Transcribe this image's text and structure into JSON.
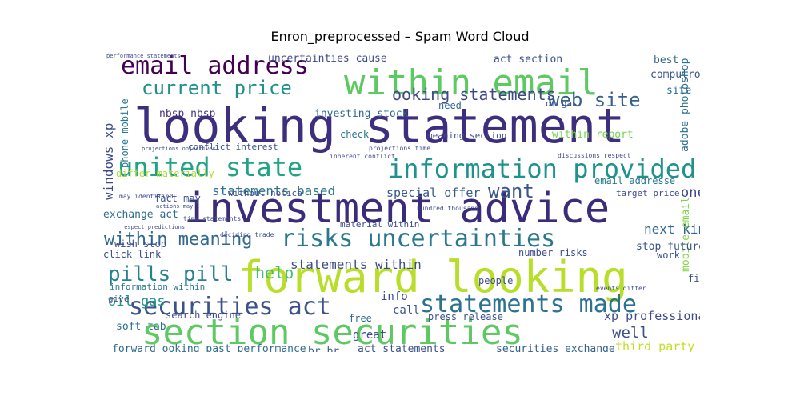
{
  "title": "Enron_preprocessed – Spam Word Cloud",
  "words": [
    {
      "text": "looking statement",
      "color": "#3e2f7e"
    },
    {
      "text": "investment advice",
      "color": "#3a2c78"
    },
    {
      "text": "forward looking",
      "color": "#b8de29"
    },
    {
      "text": "section securities",
      "color": "#5ec962"
    },
    {
      "text": "within email",
      "color": "#5ec962"
    },
    {
      "text": "email address",
      "color": "#440154"
    },
    {
      "text": "information provided",
      "color": "#20928c"
    },
    {
      "text": "united state",
      "color": "#20a386"
    },
    {
      "text": "risks uncertainties",
      "color": "#2a788e"
    },
    {
      "text": "securities act",
      "color": "#3b528b"
    },
    {
      "text": "statements made",
      "color": "#2c728e"
    },
    {
      "text": "current price",
      "color": "#21918c"
    },
    {
      "text": "ooking statements",
      "color": "#3f4788"
    },
    {
      "text": "web site",
      "color": "#35608d"
    },
    {
      "text": "pills pill",
      "color": "#26828e"
    },
    {
      "text": "within meaning",
      "color": "#31688e"
    },
    {
      "text": "want",
      "color": "#39568c"
    },
    {
      "text": "help",
      "color": "#43bf71"
    },
    {
      "text": "statements based",
      "color": "#2a768e"
    },
    {
      "text": "statements within",
      "color": "#3e4c8a"
    },
    {
      "text": "uncertainties cause",
      "color": "#3e4989"
    },
    {
      "text": "act section",
      "color": "#3c508b"
    },
    {
      "text": "best",
      "color": "#31688e"
    },
    {
      "text": "site",
      "color": "#2e6e8e"
    },
    {
      "text": "computron",
      "color": "#3b528b"
    },
    {
      "text": "investing stock",
      "color": "#31688e"
    },
    {
      "text": "nbsp nbsp",
      "color": "#46327e"
    },
    {
      "text": "within report",
      "color": "#7ad151"
    },
    {
      "text": "windows xp",
      "color": "#3e4c8a"
    },
    {
      "text": "phone mobile",
      "color": "#2a788e"
    },
    {
      "text": "adobe photoshop",
      "color": "#2d708e"
    },
    {
      "text": "one",
      "color": "#404688"
    },
    {
      "text": "special offer",
      "color": "#38598c"
    },
    {
      "text": "exchange act",
      "color": "#2f6c8e"
    },
    {
      "text": "fact may",
      "color": "#3b528b"
    },
    {
      "text": "differ materially",
      "color": "#addc30"
    },
    {
      "text": "next kin",
      "color": "#31688e"
    },
    {
      "text": "mobile email",
      "color": "#84d44b"
    },
    {
      "text": "xp professional",
      "color": "#3e4a89"
    },
    {
      "text": "oil gas",
      "color": "#1f968b"
    },
    {
      "text": "well",
      "color": "#3b528b"
    },
    {
      "text": "third party",
      "color": "#c2df23"
    },
    {
      "text": "forward ooking past performance",
      "color": "#2f6b8e"
    },
    {
      "text": "br br",
      "color": "#39568c"
    },
    {
      "text": "act statements",
      "color": "#3b528b"
    },
    {
      "text": "securities exchange",
      "color": "#35608d"
    },
    {
      "text": "soft tab",
      "color": "#2f6c8e"
    },
    {
      "text": "search engine",
      "color": "#3e4a89"
    },
    {
      "text": "info",
      "color": "#3e4c8a"
    },
    {
      "text": "call",
      "color": "#3b528b"
    },
    {
      "text": "free",
      "color": "#31688e"
    },
    {
      "text": "great",
      "color": "#3e4989"
    },
    {
      "text": "press release",
      "color": "#3b528b"
    },
    {
      "text": "people",
      "color": "#3e4c8a"
    },
    {
      "text": "number risks",
      "color": "#3e4c8a"
    },
    {
      "text": "stop future",
      "color": "#3b528b"
    },
    {
      "text": "work",
      "color": "#3b528b"
    },
    {
      "text": "find",
      "color": "#3e4c8a"
    },
    {
      "text": "email addresse",
      "color": "#2a788e"
    },
    {
      "text": "target price",
      "color": "#3e4c8a"
    },
    {
      "text": "conflict interest",
      "color": "#39568c"
    },
    {
      "text": "meaning section",
      "color": "#3e4c8a"
    },
    {
      "text": "check",
      "color": "#2a788e"
    },
    {
      "text": "need",
      "color": "#31688e"
    },
    {
      "text": "oi gas",
      "color": "#3e4c8a"
    },
    {
      "text": "click link",
      "color": "#3e4c8a"
    },
    {
      "text": "wish stop",
      "color": "#3e4c8a"
    },
    {
      "text": "information within",
      "color": "#2a788e"
    },
    {
      "text": "give",
      "color": "#3e4c8a"
    },
    {
      "text": "without notice",
      "color": "#3e4c8a"
    },
    {
      "text": "material within",
      "color": "#3e4c8a"
    },
    {
      "text": "hundred thousand",
      "color": "#3e4c8a"
    },
    {
      "text": "discussions respect",
      "color": "#3e4c8a"
    },
    {
      "text": "inherent conflict",
      "color": "#3e4c8a"
    },
    {
      "text": "projections time",
      "color": "#3e4c8a"
    },
    {
      "text": "may identified",
      "color": "#3e4c8a"
    },
    {
      "text": "actions may",
      "color": "#3e4c8a"
    },
    {
      "text": "respect predictions",
      "color": "#3e4c8a"
    },
    {
      "text": "performance statements",
      "color": "#3e4c8a"
    },
    {
      "text": "projections objectives",
      "color": "#3e4c8a"
    },
    {
      "text": "events differ",
      "color": "#3e4c8a"
    },
    {
      "text": "deciding trade",
      "color": "#3e4c8a"
    },
    {
      "text": "time statements",
      "color": "#3e4c8a"
    }
  ]
}
